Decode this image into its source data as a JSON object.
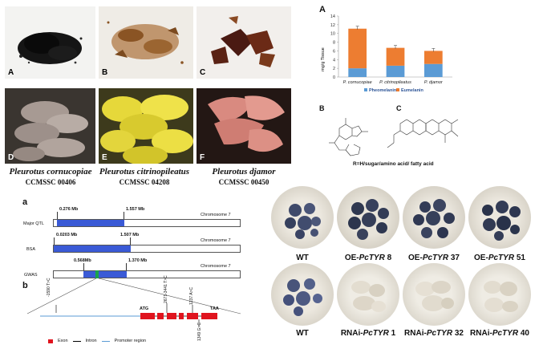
{
  "panel_a_photos": {
    "photo_labels": [
      "A",
      "B",
      "C",
      "D",
      "E",
      "F"
    ],
    "species": [
      {
        "name": "Pleurotus cornucopiae",
        "strain": "CCMSSC 00406"
      },
      {
        "name": "Pleurotus citrinopileatus",
        "strain": "CCMSSC 04208"
      },
      {
        "name": "Pleurotus djamor",
        "strain": "CCMSSC 00450"
      }
    ]
  },
  "chart_panel": {
    "letter": "A",
    "chart_data": {
      "type": "bar",
      "stacked": true,
      "categories": [
        "P. cornucopiae",
        "P. citrinopileatus",
        "P. djamor"
      ],
      "series": [
        {
          "name": "Pheomelanin",
          "values": [
            2.0,
            2.6,
            3.0
          ],
          "color": "#5b9bd5"
        },
        {
          "name": "Eumelanin",
          "values": [
            9.1,
            4.1,
            3.0
          ],
          "color": "#ed7d31"
        }
      ],
      "ylabel": "mg/g Tissue",
      "ylim": [
        0,
        14
      ],
      "yticks": [
        0,
        2,
        4,
        6,
        8,
        10,
        12,
        14
      ],
      "legend_position": "bottom",
      "grid": false
    }
  },
  "structures": {
    "letter_b": "B",
    "letter_c": "C",
    "caption": "R=H/sugar/amino acid/ fatty acid"
  },
  "genetics": {
    "letter_a": "a",
    "letter_b": "b",
    "tracks": [
      {
        "name": "Major QTL",
        "start": "0.276 Mb",
        "end": "1.557 Mb",
        "chrom": "Chromosome 7"
      },
      {
        "name": "BSA",
        "start": "0.0203 Mb",
        "end": "1.507 Mb",
        "chrom": "Chromosome 7"
      },
      {
        "name": "GWAS",
        "start": "0.568Mb",
        "end": "1.370 Mb",
        "chrom": "Chromosome 7"
      }
    ],
    "gene_labels": {
      "start_codon": "ATG",
      "stop_codon": "TAA"
    },
    "variants": [
      "-1590 T>C",
      "2671-3441 T>C",
      "1237 A>C",
      "1349 G>C"
    ],
    "legend": {
      "exon": "Exon",
      "intron": "Intron",
      "promoter": "Promoter region"
    }
  },
  "dishes": {
    "row1": [
      {
        "pre": "WT",
        "gene": "",
        "num": ""
      },
      {
        "pre": "OE-",
        "gene": "PcTYR",
        "num": " 8"
      },
      {
        "pre": "OE-",
        "gene": "PcTYR",
        "num": " 37"
      },
      {
        "pre": "OE-",
        "gene": "PcTYR",
        "num": " 51"
      }
    ],
    "row2": [
      {
        "pre": "WT",
        "gene": "",
        "num": ""
      },
      {
        "pre": "RNAi-",
        "gene": "PcTYR",
        "num": " 1"
      },
      {
        "pre": "RNAi-",
        "gene": "PcTYR",
        "num": " 32"
      },
      {
        "pre": "RNAi-",
        "gene": "PcTYR",
        "num": " 40"
      }
    ]
  },
  "colors": {
    "exon": "#e0141e",
    "intron": "#000000",
    "promoter": "#5b9bd5",
    "qtl_bar": "#3a5ad6"
  }
}
